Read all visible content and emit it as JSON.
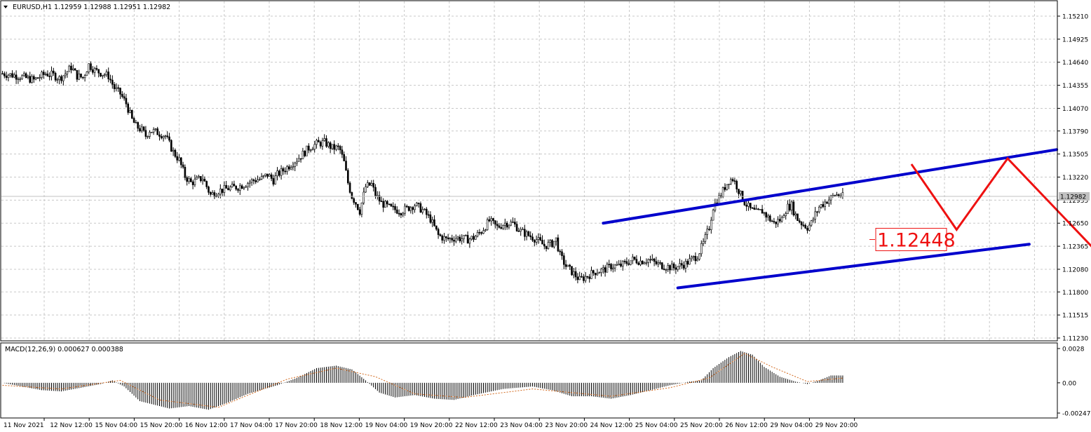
{
  "header": {
    "symbol_label": "EURUSD,H1",
    "ohlc_text": "1.12959 1.12988 1.12951 1.12982",
    "menu_icon": "triangle-down-icon"
  },
  "colors": {
    "background": "#ffffff",
    "grid": "#c8c8c8",
    "candle": "#000000",
    "channel": "#0000cc",
    "forecast": "#ee1111",
    "macd_signal": "#d2691e",
    "axis_text": "#000000",
    "price_tag_bg": "#ffffff"
  },
  "chart_data": [
    {
      "type": "candlestick",
      "title": "EURUSD,H1",
      "grid": true,
      "ylim": [
        1.1123,
        1.1521
      ],
      "y_ticks": [
        "1.15210",
        "1.14925",
        "1.14640",
        "1.14355",
        "1.14070",
        "1.13790",
        "1.13505",
        "1.13220",
        "1.12935",
        "1.12650",
        "1.12365",
        "1.12080",
        "1.11800",
        "1.11515",
        "1.11230"
      ],
      "current_price_label": "1.12982",
      "current_price": 1.12982,
      "x_labels": [
        "11 Nov 2021",
        "12 Nov 12:00",
        "15 Nov 04:00",
        "15 Nov 20:00",
        "16 Nov 12:00",
        "17 Nov 04:00",
        "17 Nov 20:00",
        "18 Nov 12:00",
        "19 Nov 04:00",
        "19 Nov 20:00",
        "22 Nov 12:00",
        "23 Nov 04:00",
        "23 Nov 20:00",
        "24 Nov 12:00",
        "25 Nov 04:00",
        "25 Nov 20:00",
        "26 Nov 12:00",
        "29 Nov 04:00",
        "29 Nov 20:00"
      ],
      "close_path": [
        [
          0,
          1.145
        ],
        [
          8,
          1.1447
        ],
        [
          16,
          1.1442
        ],
        [
          22,
          1.145
        ],
        [
          26,
          1.1448
        ],
        [
          29,
          1.1444
        ],
        [
          32,
          1.145
        ],
        [
          35,
          1.1458
        ],
        [
          38,
          1.1447
        ],
        [
          41,
          1.1445
        ],
        [
          44,
          1.1461
        ],
        [
          47,
          1.1454
        ],
        [
          51,
          1.145
        ],
        [
          54,
          1.1447
        ],
        [
          57,
          1.1432
        ],
        [
          60,
          1.1425
        ],
        [
          63,
          1.1413
        ],
        [
          66,
          1.1393
        ],
        [
          68,
          1.1385
        ],
        [
          71,
          1.138
        ],
        [
          73,
          1.1373
        ],
        [
          75,
          1.138
        ],
        [
          79,
          1.1377
        ],
        [
          83,
          1.1373
        ],
        [
          87,
          1.1353
        ],
        [
          90,
          1.1343
        ],
        [
          93,
          1.1323
        ],
        [
          96,
          1.1315
        ],
        [
          99,
          1.1318
        ],
        [
          102,
          1.1321
        ],
        [
          105,
          1.1305
        ],
        [
          106,
          1.13
        ],
        [
          110,
          1.1305
        ],
        [
          115,
          1.1308
        ],
        [
          120,
          1.131
        ],
        [
          125,
          1.1315
        ],
        [
          128,
          1.1318
        ],
        [
          132,
          1.132
        ],
        [
          135,
          1.1325
        ],
        [
          138,
          1.1318
        ],
        [
          140,
          1.1325
        ],
        [
          144,
          1.1332
        ],
        [
          148,
          1.134
        ],
        [
          152,
          1.1348
        ],
        [
          156,
          1.1358
        ],
        [
          160,
          1.1363
        ],
        [
          164,
          1.1365
        ],
        [
          168,
          1.1358
        ],
        [
          171,
          1.1358
        ],
        [
          172,
          1.1355
        ],
        [
          174,
          1.134
        ],
        [
          176,
          1.1315
        ],
        [
          178,
          1.1298
        ],
        [
          180,
          1.129
        ],
        [
          182,
          1.128
        ],
        [
          185,
          1.131
        ],
        [
          188,
          1.1313
        ],
        [
          190,
          1.13
        ],
        [
          193,
          1.129
        ],
        [
          198,
          1.1283
        ],
        [
          203,
          1.128
        ],
        [
          206,
          1.1283
        ],
        [
          210,
          1.1288
        ],
        [
          214,
          1.1281
        ],
        [
          218,
          1.127
        ],
        [
          222,
          1.125
        ],
        [
          226,
          1.1245
        ],
        [
          231,
          1.1247
        ],
        [
          237,
          1.1245
        ],
        [
          240,
          1.1247
        ],
        [
          244,
          1.1255
        ],
        [
          248,
          1.1268
        ],
        [
          252,
          1.126
        ],
        [
          256,
          1.1265
        ],
        [
          260,
          1.1265
        ],
        [
          264,
          1.1255
        ],
        [
          268,
          1.125
        ],
        [
          272,
          1.1245
        ],
        [
          276,
          1.1237
        ],
        [
          280,
          1.124
        ],
        [
          282,
          1.1245
        ],
        [
          284,
          1.1225
        ],
        [
          287,
          1.1212
        ],
        [
          290,
          1.1205
        ],
        [
          294,
          1.1195
        ],
        [
          298,
          1.12
        ],
        [
          302,
          1.1205
        ],
        [
          306,
          1.1207
        ],
        [
          310,
          1.1212
        ],
        [
          314,
          1.1212
        ],
        [
          317,
          1.1215
        ],
        [
          321,
          1.122
        ],
        [
          325,
          1.1218
        ],
        [
          329,
          1.122
        ],
        [
          333,
          1.1215
        ],
        [
          337,
          1.1212
        ],
        [
          342,
          1.121
        ],
        [
          348,
          1.1215
        ],
        [
          351,
          1.122
        ],
        [
          354,
          1.1225
        ],
        [
          357,
          1.124
        ],
        [
          360,
          1.126
        ],
        [
          362,
          1.1285
        ],
        [
          364,
          1.1293
        ],
        [
          366,
          1.13
        ],
        [
          368,
          1.131
        ],
        [
          370,
          1.1318
        ],
        [
          372,
          1.132
        ],
        [
          374,
          1.1311
        ],
        [
          376,
          1.13
        ],
        [
          378,
          1.1291
        ],
        [
          381,
          1.1282
        ],
        [
          384,
          1.1278
        ],
        [
          387,
          1.128
        ],
        [
          390,
          1.1272
        ],
        [
          393,
          1.1265
        ],
        [
          395,
          1.1268
        ],
        [
          397,
          1.127
        ],
        [
          398,
          1.1278
        ],
        [
          400,
          1.1285
        ],
        [
          402,
          1.1287
        ],
        [
          403,
          1.128
        ],
        [
          405,
          1.127
        ],
        [
          407,
          1.1265
        ],
        [
          410,
          1.126
        ],
        [
          412,
          1.1265
        ],
        [
          414,
          1.1276
        ],
        [
          416,
          1.1285
        ],
        [
          418,
          1.1289
        ],
        [
          420,
          1.1293
        ],
        [
          422,
          1.1296
        ],
        [
          424,
          1.13
        ],
        [
          426,
          1.13
        ],
        [
          428,
          1.1298
        ]
      ],
      "drawings": [
        {
          "kind": "channel-upper",
          "from": [
            306,
            1.1265
          ],
          "to": [
            537,
            1.1356
          ]
        },
        {
          "kind": "channel-lower",
          "from": [
            344,
            1.1185
          ],
          "to": [
            523,
            1.1239
          ]
        },
        {
          "kind": "forecast-path",
          "points": [
            [
              463,
              1.1338
            ],
            [
              486,
              1.1257
            ],
            [
              512,
              1.1345
            ],
            [
              584,
              1.1162
            ]
          ]
        }
      ],
      "annotation": "1.12448",
      "annotation_price": 1.12448
    },
    {
      "type": "bar",
      "title": "MACD(12,26,9) 0.000627 0.000388",
      "ylim": [
        -0.002472,
        0.0028
      ],
      "y_ticks": [
        "0.0028",
        "0.00",
        "-0.002472"
      ],
      "histogram_path": [
        [
          0,
          0.0
        ],
        [
          10,
          -0.0003
        ],
        [
          20,
          -0.0006
        ],
        [
          30,
          -0.0007
        ],
        [
          40,
          -0.0004
        ],
        [
          50,
          -0.0001
        ],
        [
          56,
          0.0002
        ],
        [
          62,
          -0.0003
        ],
        [
          70,
          -0.0015
        ],
        [
          85,
          -0.0021
        ],
        [
          95,
          -0.0019
        ],
        [
          105,
          -0.0022
        ],
        [
          115,
          -0.0016
        ],
        [
          125,
          -0.0009
        ],
        [
          140,
          -0.0002
        ],
        [
          150,
          0.0004
        ],
        [
          160,
          0.0012
        ],
        [
          170,
          0.0014
        ],
        [
          178,
          0.0011
        ],
        [
          185,
          0.0002
        ],
        [
          192,
          -0.0008
        ],
        [
          200,
          -0.0012
        ],
        [
          210,
          -0.001
        ],
        [
          220,
          -0.0013
        ],
        [
          230,
          -0.0014
        ],
        [
          240,
          -0.001
        ],
        [
          255,
          -0.0005
        ],
        [
          270,
          -0.0003
        ],
        [
          280,
          -0.0006
        ],
        [
          290,
          -0.0011
        ],
        [
          300,
          -0.0011
        ],
        [
          310,
          -0.0013
        ],
        [
          320,
          -0.001
        ],
        [
          330,
          -0.0006
        ],
        [
          340,
          -0.0002
        ],
        [
          350,
          0.0001
        ],
        [
          356,
          0.0002
        ],
        [
          362,
          0.0012
        ],
        [
          370,
          0.0021
        ],
        [
          376,
          0.0026
        ],
        [
          382,
          0.0023
        ],
        [
          388,
          0.0013
        ],
        [
          396,
          0.0005
        ],
        [
          404,
          0.0001
        ],
        [
          410,
          -0.0001
        ],
        [
          416,
          0.0002
        ],
        [
          422,
          0.0006
        ],
        [
          428,
          0.0006
        ]
      ],
      "signal_path": [
        [
          0,
          -0.0002
        ],
        [
          30,
          -0.0005
        ],
        [
          60,
          0.0002
        ],
        [
          80,
          -0.0014
        ],
        [
          110,
          -0.002
        ],
        [
          145,
          0.0003
        ],
        [
          170,
          0.0012
        ],
        [
          190,
          0.0005
        ],
        [
          210,
          -0.0009
        ],
        [
          235,
          -0.0012
        ],
        [
          270,
          -0.0005
        ],
        [
          310,
          -0.0011
        ],
        [
          340,
          -0.0004
        ],
        [
          360,
          0.0004
        ],
        [
          378,
          0.0024
        ],
        [
          392,
          0.0013
        ],
        [
          410,
          0.0001
        ],
        [
          428,
          0.000388
        ]
      ]
    }
  ]
}
